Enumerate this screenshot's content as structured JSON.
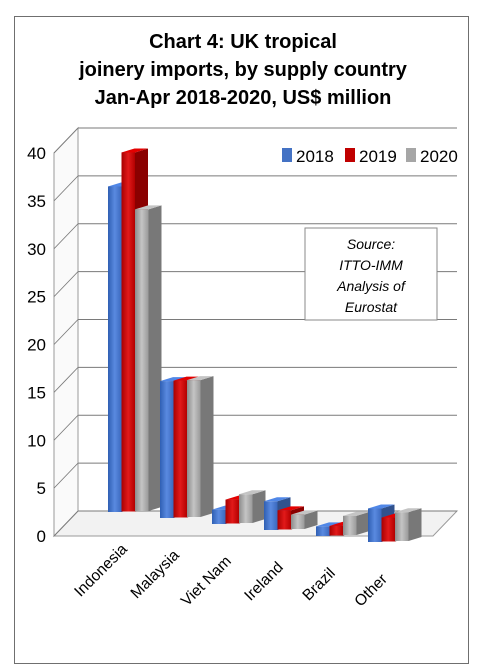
{
  "chart_data": {
    "type": "bar",
    "title_lines": [
      "Chart 4: UK tropical",
      "joinery imports, by supply country",
      "Jan-Apr 2018-2020, US$ million"
    ],
    "categories": [
      "Indonesia",
      "Malaysia",
      "Viet Nam",
      "Ireland",
      "Brazil",
      "Other"
    ],
    "series": [
      {
        "name": "2018",
        "color": "#4472C4",
        "values": [
          34,
          14.3,
          1.5,
          3,
          1,
          3.5
        ]
      },
      {
        "name": "2019",
        "color": "#C00000",
        "values": [
          37.5,
          14.3,
          2.5,
          2,
          1,
          2.5
        ]
      },
      {
        "name": "2020",
        "color": "#A6A6A6",
        "values": [
          31.5,
          14.3,
          3,
          1.5,
          2,
          3
        ]
      }
    ],
    "y_ticks": [
      "0",
      "5",
      "10",
      "15",
      "20",
      "25",
      "30",
      "35",
      "40"
    ],
    "ylim": [
      0,
      40
    ],
    "grid": true,
    "legend_position": "top-right",
    "source_note": [
      "Source:",
      "ITTO-IMM",
      "Analysis of",
      "Eurostat"
    ]
  }
}
